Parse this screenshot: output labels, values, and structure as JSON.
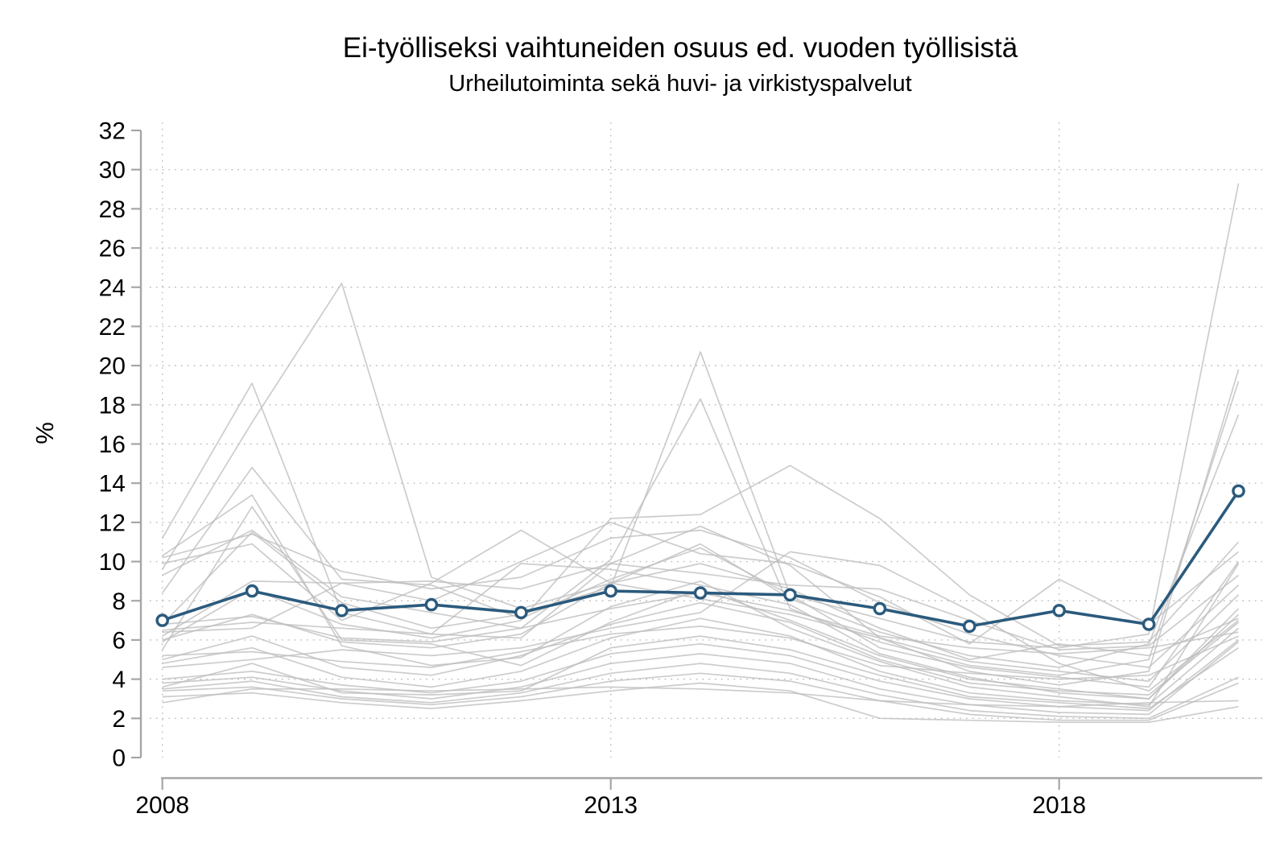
{
  "title": "Ei-työlliseksi vaihtuneiden osuus ed. vuoden työllisistä",
  "subtitle": "Urheilutoiminta sekä huvi- ja virkistyspalvelut",
  "ylabel": "%",
  "colors": {
    "highlight_line": "#2B5A7D",
    "marker_fill": "#FFFFFF",
    "background_line": "#BEBEBE",
    "axis": "#A6A6A6",
    "grid": "#BFBFBF",
    "text": "#000000",
    "background": "#FFFFFF"
  },
  "chart_data": {
    "type": "line",
    "title": "Ei-työlliseksi vaihtuneiden osuus ed. vuoden työllisistä",
    "subtitle": "Urheilutoiminta sekä huvi- ja virkistyspalvelut",
    "xlabel": "",
    "ylabel": "%",
    "x": [
      2008,
      2009,
      2010,
      2011,
      2012,
      2013,
      2014,
      2015,
      2016,
      2017,
      2018,
      2019,
      2020
    ],
    "x_ticks": [
      2008,
      2013,
      2018
    ],
    "x_tick_labels": [
      "2008",
      "2013",
      "2018"
    ],
    "ylim": [
      0,
      32
    ],
    "y_ticks": [
      0,
      2,
      4,
      6,
      8,
      10,
      12,
      14,
      16,
      18,
      20,
      22,
      24,
      26,
      28,
      30,
      32
    ],
    "grid": "dotted horizontal gridlines at every y tick (2-30), dotted vertical gridlines at x ticks",
    "legend": "none",
    "highlight_series": {
      "name": "Urheilutoiminta sekä huvi- ja virkistyspalvelut",
      "marker": "open-circle",
      "values": [
        7.0,
        8.5,
        7.5,
        7.8,
        7.4,
        8.5,
        8.4,
        8.3,
        7.6,
        6.7,
        7.5,
        6.8,
        13.6
      ]
    },
    "background_series": [
      {
        "values": [
          9.6,
          17.1,
          24.2,
          9.2,
          7.6,
          8.9,
          10.9,
          8.1,
          6.4,
          5.2,
          4.6,
          5.8,
          17.5
        ]
      },
      {
        "values": [
          11.2,
          19.1,
          7.4,
          6.3,
          6.1,
          9.9,
          11.8,
          9.8,
          6.1,
          4.4,
          3.7,
          4.4,
          19.8
        ]
      },
      {
        "values": [
          8.4,
          14.8,
          9.1,
          8.8,
          7.1,
          9.1,
          10.7,
          8.3,
          5.6,
          4.6,
          4.1,
          3.6,
          10.0
        ]
      },
      {
        "values": [
          10.3,
          13.4,
          5.7,
          4.7,
          5.1,
          7.7,
          9.0,
          6.6,
          4.9,
          3.6,
          3.1,
          2.6,
          9.9
        ]
      },
      {
        "values": [
          6.8,
          11.5,
          7.9,
          6.6,
          7.3,
          8.7,
          20.7,
          8.3,
          7.1,
          5.9,
          5.6,
          6.3,
          29.3
        ]
      },
      {
        "values": [
          9.3,
          11.6,
          8.2,
          7.4,
          6.6,
          10.1,
          18.3,
          7.6,
          5.9,
          4.7,
          4.2,
          5.0,
          19.2
        ]
      },
      {
        "values": [
          5.9,
          8.6,
          6.8,
          6.1,
          7.0,
          12.2,
          12.4,
          14.9,
          12.2,
          8.3,
          5.7,
          5.9,
          11.0
        ]
      },
      {
        "values": [
          6.2,
          9.0,
          8.9,
          8.0,
          10.0,
          12.0,
          10.4,
          9.9,
          8.2,
          5.8,
          9.1,
          6.8,
          10.5
        ]
      },
      {
        "values": [
          10.2,
          11.4,
          9.5,
          8.6,
          9.2,
          11.2,
          11.6,
          10.2,
          7.9,
          6.3,
          5.2,
          4.6,
          8.8
        ]
      },
      {
        "values": [
          9.9,
          10.9,
          7.0,
          8.9,
          11.6,
          8.9,
          8.1,
          7.3,
          6.1,
          4.9,
          4.4,
          3.9,
          8.3
        ]
      },
      {
        "values": [
          6.5,
          6.9,
          6.6,
          6.3,
          9.9,
          9.6,
          8.8,
          7.8,
          5.3,
          4.1,
          3.3,
          3.0,
          7.3
        ]
      },
      {
        "values": [
          6.0,
          7.3,
          5.9,
          5.6,
          6.3,
          8.9,
          9.9,
          8.6,
          6.6,
          5.0,
          5.8,
          5.2,
          7.1
        ]
      },
      {
        "values": [
          5.0,
          6.2,
          4.6,
          4.2,
          5.2,
          6.8,
          7.9,
          6.9,
          5.0,
          3.8,
          3.4,
          3.2,
          6.9
        ]
      },
      {
        "values": [
          4.8,
          5.6,
          4.1,
          3.6,
          4.4,
          6.1,
          7.1,
          6.2,
          4.4,
          3.3,
          2.9,
          2.7,
          6.6
        ]
      },
      {
        "values": [
          6.8,
          7.2,
          6.1,
          5.9,
          6.6,
          7.6,
          8.4,
          7.5,
          6.2,
          5.6,
          5.3,
          5.6,
          6.4
        ]
      },
      {
        "values": [
          5.2,
          5.4,
          4.9,
          4.6,
          5.4,
          6.3,
          6.7,
          6.1,
          4.7,
          4.3,
          4.0,
          4.2,
          6.2
        ]
      },
      {
        "values": [
          4.0,
          4.4,
          3.7,
          3.3,
          3.9,
          5.3,
          5.8,
          5.2,
          3.9,
          3.0,
          2.6,
          2.4,
          6.0
        ]
      },
      {
        "values": [
          3.8,
          4.1,
          3.4,
          3.0,
          3.6,
          4.8,
          5.3,
          4.8,
          3.5,
          2.7,
          2.3,
          2.2,
          5.9
        ]
      },
      {
        "values": [
          3.5,
          3.9,
          3.1,
          2.8,
          3.3,
          4.3,
          4.8,
          4.3,
          3.2,
          2.4,
          2.1,
          2.0,
          4.1
        ]
      },
      {
        "values": [
          3.4,
          3.6,
          3.0,
          2.7,
          3.1,
          3.9,
          4.3,
          3.9,
          2.9,
          2.2,
          1.9,
          1.9,
          3.8
        ]
      },
      {
        "values": [
          3.1,
          3.3,
          2.8,
          2.5,
          2.9,
          3.4,
          3.8,
          3.4,
          2.0,
          1.9,
          1.8,
          1.8,
          2.6
        ]
      },
      {
        "values": [
          2.8,
          3.5,
          3.5,
          3.4,
          3.5,
          3.6,
          3.5,
          3.3,
          2.9,
          2.7,
          2.6,
          2.8,
          2.9
        ]
      },
      {
        "values": [
          6.4,
          6.6,
          8.9,
          9.0,
          8.6,
          9.9,
          9.4,
          8.8,
          8.6,
          7.0,
          5.5,
          5.7,
          9.3
        ]
      },
      {
        "values": [
          4.6,
          5.0,
          5.5,
          5.2,
          5.6,
          6.6,
          7.4,
          10.5,
          9.8,
          7.5,
          4.8,
          3.4,
          7.0
        ]
      },
      {
        "values": [
          3.6,
          4.8,
          3.3,
          3.2,
          3.4,
          5.6,
          6.2,
          5.5,
          4.2,
          3.1,
          2.8,
          2.5,
          5.6
        ]
      },
      {
        "values": [
          5.5,
          12.8,
          6.0,
          5.8,
          4.7,
          6.9,
          8.6,
          7.0,
          5.2,
          4.0,
          3.5,
          3.0,
          7.6
        ]
      }
    ]
  }
}
